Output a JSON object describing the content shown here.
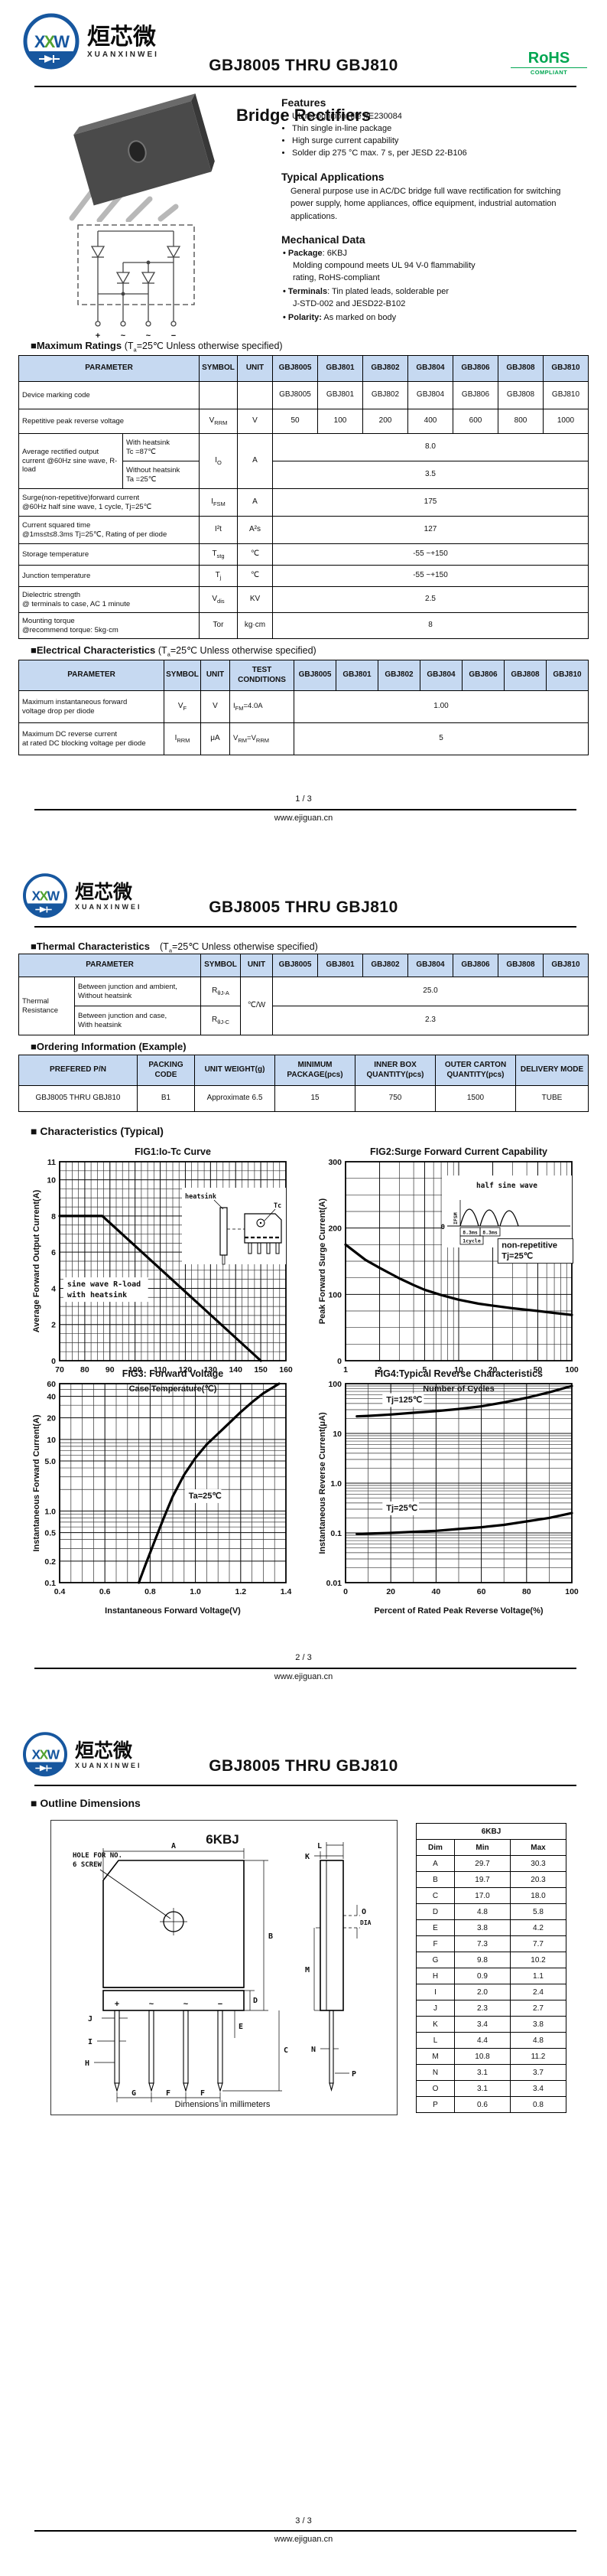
{
  "header": {
    "logo": {
      "l1": "X",
      "l2": "X",
      "l3": "W",
      "brand_cn": "烜芯微",
      "brand_en": "XUANXINWEI",
      "blue": "#17579f",
      "green": "#52a331"
    },
    "part_range": "GBJ8005 THRU GBJ810",
    "rohs": {
      "line1": "RoHS",
      "line2": "COMPLIANT",
      "color": "#00a651"
    }
  },
  "footer": {
    "site": "www.ejiguan.cn",
    "page1": "1 / 3",
    "page2": "2 / 3",
    "page3": "3 / 3"
  },
  "page1": {
    "title": "Bridge Rectifiers",
    "features": {
      "heading": "Features",
      "items": [
        "UL recognition, file #E230084",
        "Thin single in-line package",
        "High surge current capability",
        "Solder dip 275 °C max. 7 s, per JESD 22-B106"
      ]
    },
    "applications": {
      "heading": "Typical Applications",
      "text": "General purpose use in AC/DC bridge full wave rectification for switching power supply, home appliances, office equipment, industrial automation applications."
    },
    "mechanical": {
      "heading": "Mechanical Data",
      "items": [
        {
          "label": "Package",
          "text": ": 6KBJ",
          "extra1": "Molding compound meets UL 94 V-0 flammability",
          "extra2": "rating, RoHS-compliant"
        },
        {
          "label": "Terminals",
          "text": ": Tin plated leads, solderable  per",
          "extra1": "J-STD-002 and JESD22-B102",
          "extra2": ""
        },
        {
          "label": "Polarity:",
          "text": " As marked on body",
          "extra1": "",
          "extra2": ""
        }
      ]
    },
    "schematic": {
      "terminals": [
        "+",
        "~",
        "~",
        "−"
      ]
    },
    "mr": {
      "heading": "■Maximum Ratings",
      "c1": "(T",
      "csub": "a",
      "c2": "=25℃ Unless otherwise specified)",
      "headers": [
        "PARAMETER",
        "SYMBOL",
        "UNIT",
        "GBJ8005",
        "GBJ801",
        "GBJ802",
        "GBJ804",
        "GBJ806",
        "GBJ808",
        "GBJ810"
      ],
      "marking": {
        "param": "Device marking code",
        "values": [
          "GBJ8005",
          "GBJ801",
          "GBJ802",
          "GBJ804",
          "GBJ806",
          "GBJ808",
          "GBJ810"
        ]
      },
      "vrrm": {
        "param": "Repetitive peak reverse voltage",
        "sym": "V",
        "sub": "RRM",
        "unit": "V",
        "values": [
          "50",
          "100",
          "200",
          "400",
          "600",
          "800",
          "1000"
        ]
      },
      "io": {
        "param": "Average rectified output current  @60Hz sine wave, R-load",
        "sub1a": "With heatsink",
        "sub1b": "Tc =87℃",
        "sub2a": "Without heatsink",
        "sub2b": "Ta =25℃",
        "sym": "I",
        "sub": "O",
        "unit": "A",
        "v1": "8.0",
        "v2": "3.5"
      },
      "ifsm": {
        "p1": "Surge(non-repetitive)forward current",
        "p2": "@60Hz half sine wave, 1 cycle, Tj=25℃",
        "sym": "I",
        "sub": "FSM",
        "unit": "A",
        "value": "175"
      },
      "i2t": {
        "p1": "Current squared time",
        "p2": "@1ms≤t≤8.3ms Tj=25℃, Rating of per diode",
        "sym": "I²t",
        "sub": "",
        "unit": "A²s",
        "value": "127"
      },
      "tstg": {
        "p1": "Storage temperature",
        "p2": "",
        "sym": "T",
        "sub": "stg",
        "unit": "℃",
        "value": "-55 ~+150"
      },
      "tj": {
        "p1": "Junction temperature",
        "p2": "",
        "sym": "T",
        "sub": "j",
        "unit": "℃",
        "value": "-55 ~+150"
      },
      "vdis": {
        "p1": "Dielectric strength",
        "p2": "@ terminals to case, AC 1 minute",
        "sym": "V",
        "sub": "dis",
        "unit": "KV",
        "value": "2.5"
      },
      "tor": {
        "p1": "Mounting torque",
        "p2": "@recommend torque: 5kg·cm",
        "sym": "Tor",
        "sub": "",
        "unit": "kg·cm",
        "value": "8"
      }
    },
    "ec": {
      "heading": "■Electrical Characteristics",
      "c1": "(T",
      "csub": "a",
      "c2": "=25℃ Unless otherwise specified)",
      "headers": [
        "PARAMETER",
        "SYMBOL",
        "UNIT",
        "TEST CONDITIONS",
        "GBJ8005",
        "GBJ801",
        "GBJ802",
        "GBJ804",
        "GBJ806",
        "GBJ808",
        "GBJ810"
      ],
      "vf": {
        "p1": "Maximum instantaneous forward",
        "p2": "voltage drop per diode",
        "sym": "V",
        "sub": "F",
        "unit": "V",
        "c1": "I",
        "c2": "FM",
        "c3": "=4.0A",
        "c4": "",
        "value": "1.00"
      },
      "irrm": {
        "p1": "Maximum DC reverse current",
        "p2": "at rated DC blocking voltage per diode",
        "sym": "I",
        "sub": "RRM",
        "unit": "μA",
        "c1": "V",
        "c2": "RM",
        "c3": "=V",
        "c4": "RRM",
        "value": "5"
      }
    }
  },
  "page2": {
    "th": {
      "heading": "■Thermal Characteristics",
      "c1": "(T",
      "csub": "a",
      "c2": "=25℃ Unless otherwise specified)",
      "headers": [
        "PARAMETER",
        "SYMBOL",
        "UNIT",
        "GBJ8005",
        "GBJ801",
        "GBJ802",
        "GBJ804",
        "GBJ806",
        "GBJ808",
        "GBJ810"
      ],
      "group": "Thermal Resistance",
      "r1": {
        "p1": "Between junction and ambient,",
        "p2": "Without heatsink",
        "sym": "R",
        "sub": "θJ-A",
        "value": "25.0"
      },
      "r2": {
        "p1": "Between junction and case,",
        "p2": "With heatsink",
        "sym": "R",
        "sub": "θJ-C",
        "value": "2.3"
      },
      "unit": "℃/W"
    },
    "ord": {
      "heading": "■Ordering Information (Example)",
      "headers": [
        "PREFERED P/N",
        "PACKING CODE",
        "UNIT WEIGHT(g)",
        "MINIMUM PACKAGE(pcs)",
        "INNER BOX QUANTITY(pcs)",
        "OUTER CARTON QUANTITY(pcs)",
        "DELIVERY MODE"
      ],
      "row": [
        "GBJ8005 THRU GBJ810",
        "B1",
        "Approximate  6.5",
        "15",
        "750",
        "1500",
        "TUBE"
      ]
    },
    "ch_heading": "■ Characteristics (Typical)"
  },
  "page3": {
    "outline": {
      "heading": "■ Outline Dimensions",
      "drawing_title": "6KBJ",
      "hole1": "HOLE FOR NO.",
      "hole2": "6 SCREW",
      "note": "Dimensions in millimeters",
      "terminals": [
        "+",
        "~",
        "~",
        "−"
      ],
      "marks": {
        "A": "A",
        "B": "B",
        "C": "C",
        "D": "D",
        "E": "E",
        "F": "F",
        "G": "G",
        "H": "H",
        "I": "I",
        "J": "J",
        "K": "K",
        "L": "L",
        "M": "M",
        "N": "N",
        "O": "O",
        "P": "P",
        "DIA": "DIA"
      },
      "table": {
        "title": "6KBJ",
        "headers": [
          "Dim",
          "Min",
          "Max"
        ],
        "rows": [
          [
            "A",
            "29.7",
            "30.3"
          ],
          [
            "B",
            "19.7",
            "20.3"
          ],
          [
            "C",
            "17.0",
            "18.0"
          ],
          [
            "D",
            "4.8",
            "5.8"
          ],
          [
            "E",
            "3.8",
            "4.2"
          ],
          [
            "F",
            "7.3",
            "7.7"
          ],
          [
            "G",
            "9.8",
            "10.2"
          ],
          [
            "H",
            "0.9",
            "1.1"
          ],
          [
            "I",
            "2.0",
            "2.4"
          ],
          [
            "J",
            "2.3",
            "2.7"
          ],
          [
            "K",
            "3.4",
            "3.8"
          ],
          [
            "L",
            "4.4",
            "4.8"
          ],
          [
            "M",
            "10.8",
            "11.2"
          ],
          [
            "N",
            "3.1",
            "3.7"
          ],
          [
            "O",
            "3.1",
            "3.4"
          ],
          [
            "P",
            "0.6",
            "0.8"
          ]
        ]
      }
    }
  },
  "chart_data": [
    {
      "figure": "FIG1",
      "type": "line",
      "title": "FIG1:Io-Tc Curve",
      "xlabel": "Case Temperature(℃)",
      "ylabel": "Average Forward Output Current(A)",
      "xscale": "linear",
      "yscale": "linear",
      "xlim": [
        70,
        160
      ],
      "ylim": [
        0,
        11
      ],
      "xminor": 2.5,
      "yminor": 0.5,
      "xticks": [
        [
          70,
          "70"
        ],
        [
          80,
          "80"
        ],
        [
          90,
          "90"
        ],
        [
          100,
          "100"
        ],
        [
          110,
          "110"
        ],
        [
          120,
          "120"
        ],
        [
          130,
          "130"
        ],
        [
          140,
          "140"
        ],
        [
          150,
          "150"
        ],
        [
          160,
          "160"
        ]
      ],
      "yticks": [
        [
          0,
          "0"
        ],
        [
          2,
          "2"
        ],
        [
          4,
          "4"
        ],
        [
          6,
          "6"
        ],
        [
          8,
          "8"
        ],
        [
          10,
          "10"
        ],
        [
          11,
          "11"
        ]
      ],
      "grid": true,
      "legend": "none",
      "series": [
        {
          "name": "Io vs Tc, sine wave R-load with heatsink",
          "points": [
            [
              70,
              8
            ],
            [
              87,
              8
            ],
            [
              150,
              0
            ]
          ]
        }
      ],
      "annotations": [
        {
          "x": 73,
          "y": 4.1,
          "lines": [
            "sine wave R-load",
            "with heatsink"
          ],
          "mono": true
        }
      ],
      "inset": "package",
      "inset_labels": {
        "heatsink": "heatsink",
        "tc": "Tc"
      }
    },
    {
      "figure": "FIG2",
      "type": "line",
      "title": "FIG2:Surge Forward Current Capability",
      "xlabel": "Number of Cycles",
      "ylabel": "Peak Forward Surge Current(A)",
      "xscale": "log",
      "yscale": "linear",
      "xlim": [
        1,
        100
      ],
      "ylim": [
        0,
        300
      ],
      "yminor": 25,
      "xticks": [
        [
          1,
          "1"
        ],
        [
          2,
          "2"
        ],
        [
          5,
          "5"
        ],
        [
          10,
          "10"
        ],
        [
          20,
          "20"
        ],
        [
          50,
          "50"
        ],
        [
          100,
          "100"
        ]
      ],
      "yticks": [
        [
          0,
          "0"
        ],
        [
          100,
          "100"
        ],
        [
          200,
          "200"
        ],
        [
          300,
          "300"
        ]
      ],
      "grid": true,
      "legend": "none",
      "series": [
        {
          "name": "IFSM vs cycles, non-repetitive Tj=25℃",
          "points": [
            [
              1,
              175
            ],
            [
              1.5,
              152
            ],
            [
              2,
              140
            ],
            [
              3,
              124
            ],
            [
              4,
              114
            ],
            [
              5,
              107
            ],
            [
              7,
              99
            ],
            [
              10,
              92
            ],
            [
              15,
              86
            ],
            [
              20,
              83
            ],
            [
              30,
              79
            ],
            [
              50,
              75
            ],
            [
              70,
              72
            ],
            [
              100,
              69
            ]
          ]
        }
      ],
      "annotations": [
        {
          "x": 24,
          "y": 170,
          "lines": [
            "non-repetitive",
            "Tj=25℃"
          ],
          "box": true
        }
      ],
      "inset": "halfsine",
      "inset_labels": {
        "title": "half sine wave",
        "ifsm": "IFSM",
        "t1": "8.3ms",
        "t2": "8.3ms",
        "cycle": "1cycle",
        "zero": "0"
      }
    },
    {
      "figure": "FIG3",
      "type": "line",
      "title": "FIG3: Forward Voltage",
      "xlabel": "Instantaneous Forward Voltage(V)",
      "ylabel": "Instantaneous Forward Current(A)",
      "xscale": "linear",
      "yscale": "log",
      "xlim": [
        0.4,
        1.4
      ],
      "ylim": [
        0.1,
        60
      ],
      "xminor": 0.05,
      "xticks": [
        [
          0.4,
          "0.4"
        ],
        [
          0.6,
          "0.6"
        ],
        [
          0.8,
          "0.8"
        ],
        [
          1,
          "1.0"
        ],
        [
          1.2,
          "1.2"
        ],
        [
          1.4,
          "1.4"
        ]
      ],
      "yticks": [
        [
          0.1,
          "0.1"
        ],
        [
          0.2,
          "0.2"
        ],
        [
          0.5,
          "0.5"
        ],
        [
          1,
          "1.0"
        ],
        [
          5,
          "5.0"
        ],
        [
          10,
          "10"
        ],
        [
          20,
          "20"
        ],
        [
          40,
          "40"
        ],
        [
          60,
          "60"
        ]
      ],
      "grid": true,
      "legend": "none",
      "series": [
        {
          "name": "IF vs VF, Ta=25℃",
          "points": [
            [
              0.75,
              0.1
            ],
            [
              0.78,
              0.18
            ],
            [
              0.82,
              0.38
            ],
            [
              0.86,
              0.8
            ],
            [
              0.9,
              1.6
            ],
            [
              0.95,
              3.2
            ],
            [
              1.0,
              5.5
            ],
            [
              1.05,
              8.5
            ],
            [
              1.1,
              12
            ],
            [
              1.15,
              17
            ],
            [
              1.2,
              24
            ],
            [
              1.25,
              33
            ],
            [
              1.3,
              44
            ],
            [
              1.37,
              60
            ]
          ]
        }
      ],
      "annotations": [
        {
          "x": 0.97,
          "y": 1.5,
          "lines": [
            "Ta=25℃"
          ]
        }
      ]
    },
    {
      "figure": "FIG4",
      "type": "line",
      "title": "FIG4:Typical Reverse Characteristics",
      "xlabel": "Percent of Rated Peak Reverse Voltage(%)",
      "ylabel": "Instantaneous Reverse Current(μA)",
      "xscale": "linear",
      "yscale": "log",
      "xlim": [
        0,
        100
      ],
      "ylim": [
        0.01,
        100
      ],
      "xminor": 10,
      "xticks": [
        [
          0,
          "0"
        ],
        [
          20,
          "20"
        ],
        [
          40,
          "40"
        ],
        [
          60,
          "60"
        ],
        [
          80,
          "80"
        ],
        [
          100,
          "100"
        ]
      ],
      "yticks": [
        [
          0.01,
          "0.01"
        ],
        [
          0.1,
          "0.1"
        ],
        [
          1,
          "1.0"
        ],
        [
          10,
          "10"
        ],
        [
          100,
          "100"
        ]
      ],
      "grid": true,
      "legend": "none",
      "series": [
        {
          "name": "Tj=125℃",
          "points": [
            [
              5,
              22
            ],
            [
              10,
              22.5
            ],
            [
              20,
              24
            ],
            [
              30,
              26
            ],
            [
              40,
              28
            ],
            [
              50,
              31
            ],
            [
              60,
              35
            ],
            [
              70,
              42
            ],
            [
              80,
              52
            ],
            [
              90,
              67
            ],
            [
              100,
              90
            ]
          ]
        },
        {
          "name": "Tj=25℃",
          "points": [
            [
              5,
              0.095
            ],
            [
              10,
              0.097
            ],
            [
              20,
              0.1
            ],
            [
              30,
              0.105
            ],
            [
              40,
              0.11
            ],
            [
              50,
              0.12
            ],
            [
              60,
              0.13
            ],
            [
              70,
              0.145
            ],
            [
              80,
              0.17
            ],
            [
              90,
              0.2
            ],
            [
              100,
              0.25
            ]
          ]
        }
      ],
      "annotations": [
        {
          "x": 18,
          "y": 42,
          "lines": [
            "Tj=125℃"
          ]
        },
        {
          "x": 18,
          "y": 0.28,
          "lines": [
            "Tj=25℃"
          ]
        }
      ]
    }
  ]
}
